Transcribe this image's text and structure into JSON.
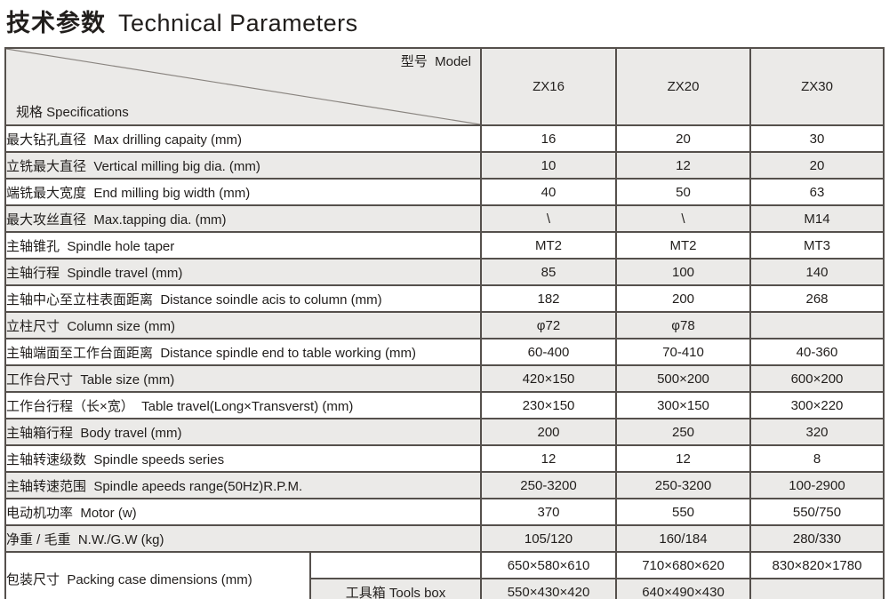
{
  "page": {
    "title": {
      "zh": "技术参数",
      "en": "Technical Parameters"
    }
  },
  "table": {
    "corner": {
      "specifications": "规格 Specifications",
      "model": "型号  Model"
    },
    "columns": [
      "ZX16",
      "ZX20",
      "ZX30"
    ],
    "rows": [
      {
        "label": "最大钻孔直径  Max drilling capaity (mm)",
        "values": [
          "16",
          "20",
          "30"
        ]
      },
      {
        "label": "立铣最大直径  Vertical milling big dia. (mm)",
        "values": [
          "10",
          "12",
          "20"
        ]
      },
      {
        "label": "端铣最大宽度  End milling big width (mm)",
        "values": [
          "40",
          "50",
          "63"
        ]
      },
      {
        "label": "最大攻丝直径  Max.tapping dia. (mm)",
        "values": [
          "\\",
          "\\",
          "M14"
        ]
      },
      {
        "label": "主轴锥孔  Spindle hole taper",
        "values": [
          "MT2",
          "MT2",
          "MT3"
        ]
      },
      {
        "label": "主轴行程  Spindle travel (mm)",
        "values": [
          "85",
          "100",
          "140"
        ]
      },
      {
        "label": "主轴中心至立柱表面距离  Distance soindle acis to column (mm)",
        "values": [
          "182",
          "200",
          "268"
        ]
      },
      {
        "label": "立柱尺寸  Column size (mm)",
        "values": [
          "φ72",
          "φ78",
          ""
        ]
      },
      {
        "label": "主轴端面至工作台面距离  Distance spindle end to table working (mm)",
        "values": [
          "60-400",
          "70-410",
          "40-360"
        ]
      },
      {
        "label": "工作台尺寸  Table size (mm)",
        "values": [
          "420×150",
          "500×200",
          "600×200"
        ]
      },
      {
        "label": "工作台行程（长×宽）  Table travel(Long×Transverst) (mm)",
        "values": [
          "230×150",
          "300×150",
          "300×220"
        ]
      },
      {
        "label": "主轴箱行程  Body travel (mm)",
        "values": [
          "200",
          "250",
          "320"
        ]
      },
      {
        "label": "主轴转速级数  Spindle speeds series",
        "values": [
          "12",
          "12",
          "8"
        ]
      },
      {
        "label": "主轴转速范围  Spindle apeeds range(50Hz)R.P.M.",
        "values": [
          "250-3200",
          "250-3200",
          "100-2900"
        ]
      },
      {
        "label": "电动机功率  Motor (w)",
        "values": [
          "370",
          "550",
          "550/750"
        ]
      },
      {
        "label": "净重 / 毛重  N.W./G.W (kg)",
        "values": [
          "105/120",
          "160/184",
          "280/330"
        ]
      }
    ],
    "packing": {
      "label": "包装尺寸  Packing case dimensions (mm)",
      "rows": [
        {
          "sub_label": "",
          "values": [
            "650×580×610",
            "710×680×620",
            "830×820×1780"
          ]
        },
        {
          "sub_label": "工具箱 Tools box",
          "values": [
            "550×430×420",
            "640×490×430",
            ""
          ]
        }
      ]
    },
    "colors": {
      "border": "#55504c",
      "shaded-bg": "#ebeae8",
      "white-bg": "#ffffff",
      "text": "#211e1c",
      "diagonal": "#8a8580"
    }
  }
}
